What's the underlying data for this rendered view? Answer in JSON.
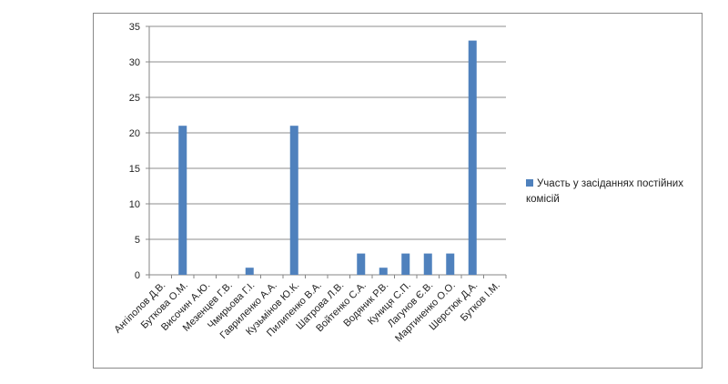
{
  "chart_data": {
    "type": "bar",
    "categories": [
      "Ангіполов Д.В.",
      "Буткова О.М.",
      "Височин А.Ю.",
      "Мезенцев Г.В.",
      "Чмирьова Г.І.",
      "Гавриленко А.А.",
      "Кузьмінов Ю.К.",
      "Пилипенко В.А.",
      "Шатрова Л.В.",
      "Войтенко С.А.",
      "Водяник Р.В.",
      "Куниця С.П.",
      "Лагунов Є.В.",
      "Мартиненко О.О.",
      "Шерстюк Д.А.",
      "Бутков І.М."
    ],
    "series": [
      {
        "name": "Участь у засіданнях постійних комісій",
        "values": [
          0,
          21,
          0,
          0,
          1,
          0,
          21,
          0,
          0,
          3,
          1,
          3,
          3,
          3,
          33,
          0
        ],
        "color": "#4f81bd"
      }
    ],
    "ylim": [
      0,
      35
    ],
    "yticks": [
      0,
      5,
      10,
      15,
      20,
      25,
      30,
      35
    ],
    "grid": true,
    "legend": "right",
    "title": "",
    "xlabel": "",
    "ylabel": ""
  }
}
